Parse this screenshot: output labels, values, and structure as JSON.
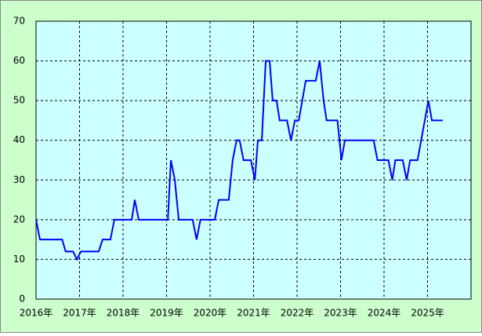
{
  "chart_data": {
    "type": "line",
    "color": "#0000ff",
    "grid": true,
    "x": [
      2016.0,
      2016.09,
      2016.6,
      2016.68,
      2016.85,
      2016.94,
      2017.03,
      2017.44,
      2017.53,
      2017.71,
      2017.8,
      2018.2,
      2018.27,
      2018.36,
      2019.03,
      2019.1,
      2019.19,
      2019.28,
      2019.6,
      2019.69,
      2019.78,
      2020.11,
      2020.2,
      2020.43,
      2020.52,
      2020.61,
      2020.68,
      2020.77,
      2020.94,
      2021.03,
      2021.1,
      2021.19,
      2021.28,
      2021.37,
      2021.44,
      2021.53,
      2021.6,
      2021.77,
      2021.86,
      2021.95,
      2022.04,
      2022.2,
      2022.43,
      2022.52,
      2022.61,
      2022.68,
      2022.93,
      2023.02,
      2023.1,
      2023.76,
      2023.85,
      2024.1,
      2024.19,
      2024.26,
      2024.43,
      2024.52,
      2024.6,
      2024.77,
      2025.02,
      2025.1,
      2025.35
    ],
    "values": [
      20,
      15,
      15,
      12,
      12,
      10,
      12,
      12,
      15,
      15,
      20,
      20,
      25,
      20,
      20,
      35,
      30,
      20,
      20,
      15,
      20,
      20,
      25,
      25,
      35,
      40,
      40,
      35,
      35,
      30,
      40,
      40,
      60,
      60,
      50,
      50,
      45,
      45,
      40,
      45,
      45,
      55,
      55,
      60,
      50,
      45,
      45,
      35,
      40,
      40,
      35,
      35,
      30,
      35,
      35,
      30,
      35,
      35,
      50,
      45,
      45
    ],
    "xlim": [
      2016,
      2026
    ],
    "xticks": [
      {
        "value": 2016,
        "label": "2016年"
      },
      {
        "value": 2017,
        "label": "2017年"
      },
      {
        "value": 2018,
        "label": "2018年"
      },
      {
        "value": 2019,
        "label": "2019年"
      },
      {
        "value": 2020,
        "label": "2020年"
      },
      {
        "value": 2021,
        "label": "2021年"
      },
      {
        "value": 2022,
        "label": "2022年"
      },
      {
        "value": 2023,
        "label": "2023年"
      },
      {
        "value": 2024,
        "label": "2024年"
      },
      {
        "value": 2025,
        "label": "2025年"
      }
    ],
    "ylim": [
      0,
      70
    ],
    "yticks": [
      0,
      10,
      20,
      30,
      40,
      50,
      60,
      70
    ]
  }
}
